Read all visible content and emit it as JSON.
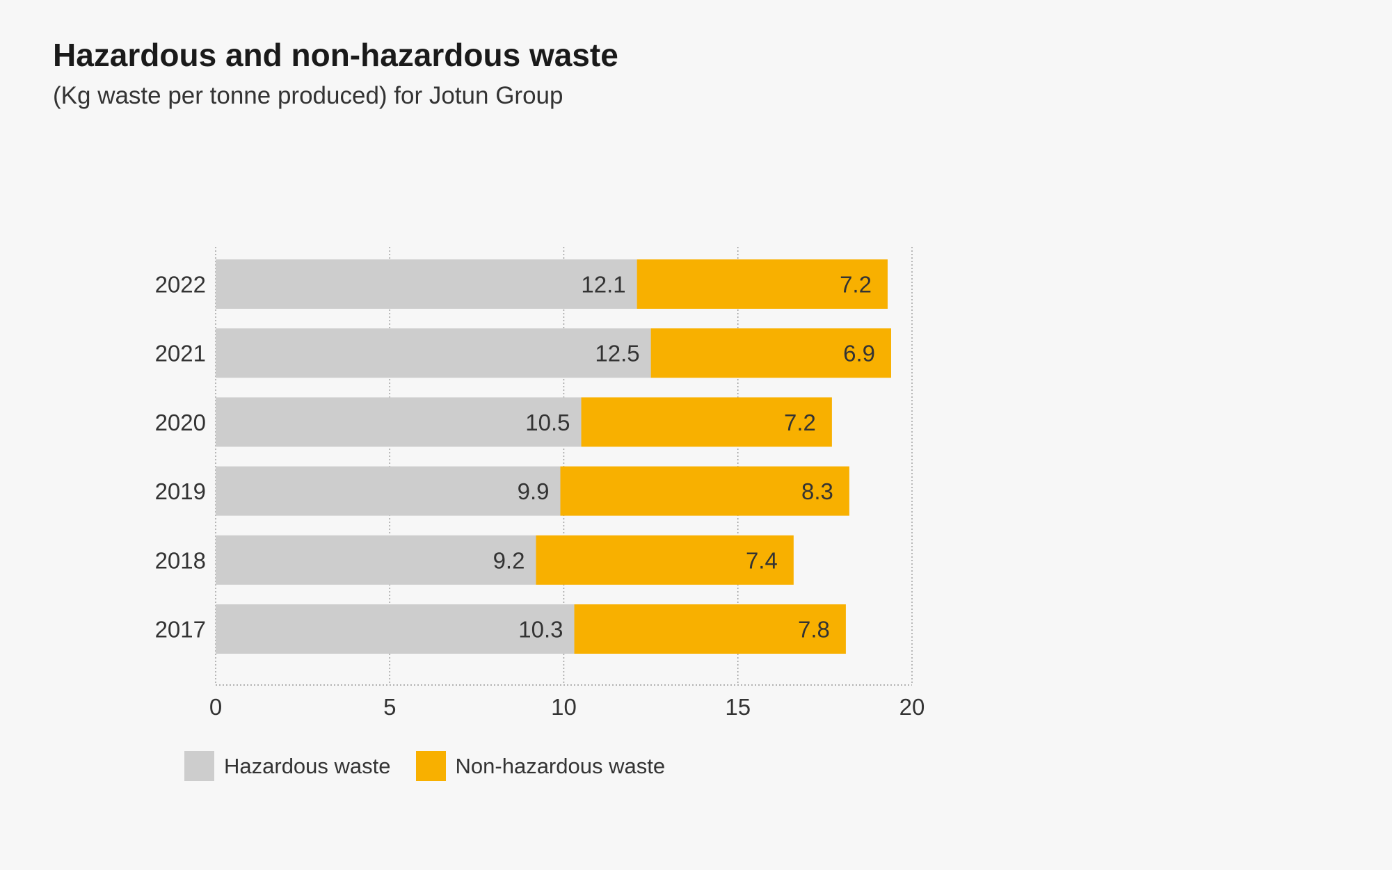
{
  "title": "Hazardous and non-hazardous waste",
  "subtitle": "(Kg waste per tonne produced) for Jotun Group",
  "legend": {
    "hazardous_label": "Hazardous waste",
    "nonhazardous_label": "Non-hazardous waste"
  },
  "colors": {
    "hazardous": "#cdcdcd",
    "nonhazardous": "#f8b000",
    "grid": "#9a9a9a",
    "text": "#333333",
    "background": "#f7f7f7"
  },
  "chart_data": {
    "type": "bar",
    "orientation": "horizontal",
    "stacked": true,
    "title": "Hazardous and non-hazardous waste",
    "subtitle": "(Kg waste per tonne produced) for Jotun Group",
    "categories": [
      "2022",
      "2021",
      "2020",
      "2019",
      "2018",
      "2017"
    ],
    "series": [
      {
        "name": "Hazardous waste",
        "values": [
          12.1,
          12.5,
          10.5,
          9.9,
          9.2,
          10.3
        ],
        "labels": [
          "12.1",
          "12.5",
          "10.5",
          "9.9",
          "9.2",
          "10.3"
        ]
      },
      {
        "name": "Non-hazardous waste",
        "values": [
          7.2,
          6.9,
          7.2,
          8.3,
          7.4,
          7.8
        ],
        "labels": [
          "7.2",
          "6.9",
          "7.2",
          "8.3",
          "7.4",
          "7.8"
        ]
      }
    ],
    "xlim": [
      0,
      20
    ],
    "xticks": [
      0,
      5,
      10,
      15,
      20
    ],
    "xtick_labels": [
      "0",
      "5",
      "10",
      "15",
      "20"
    ],
    "grid": "vertical dotted",
    "legend_position": "bottom-left"
  }
}
